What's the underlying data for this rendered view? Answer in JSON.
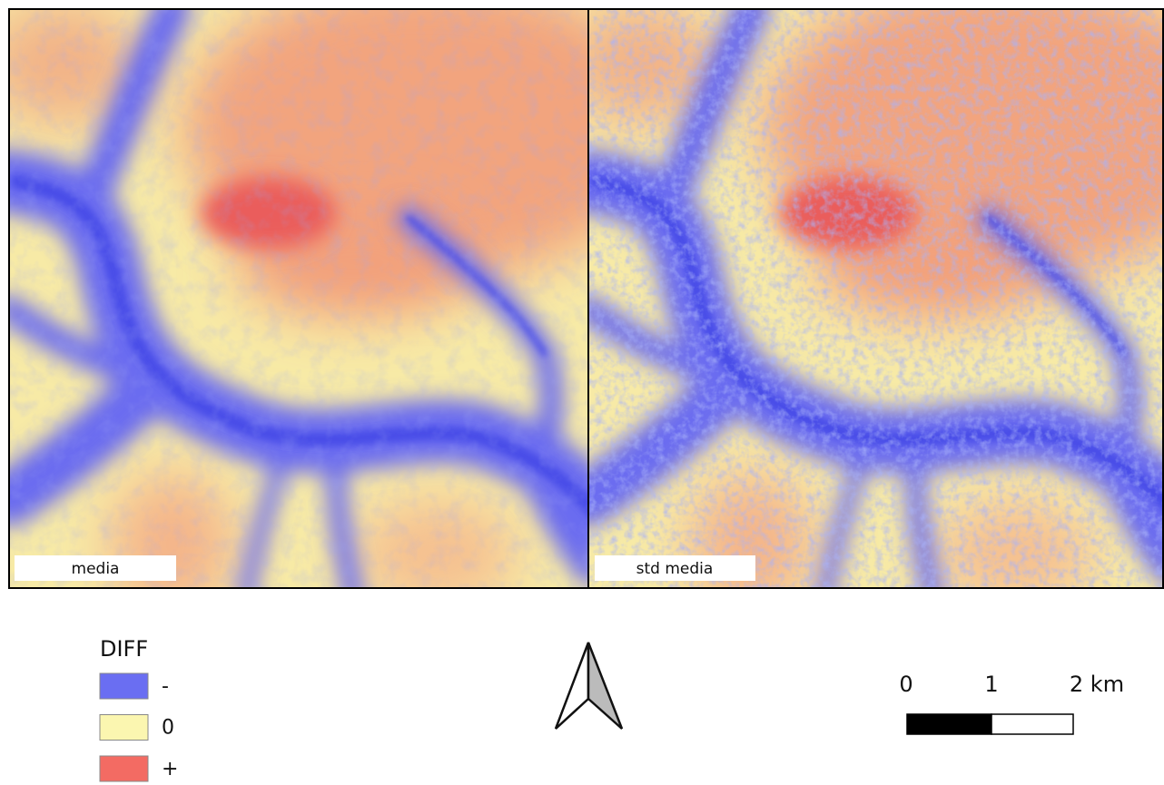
{
  "panels": [
    {
      "label": "media"
    },
    {
      "label": "std media"
    }
  ],
  "legend": {
    "title": "DIFF",
    "items": [
      {
        "label": "-",
        "color": "#6a6ef2"
      },
      {
        "label": "0",
        "color": "#fbf6b0"
      },
      {
        "label": "+",
        "color": "#f36b63"
      }
    ]
  },
  "scale_bar": {
    "labels": [
      "0",
      "1",
      "2 km"
    ]
  }
}
